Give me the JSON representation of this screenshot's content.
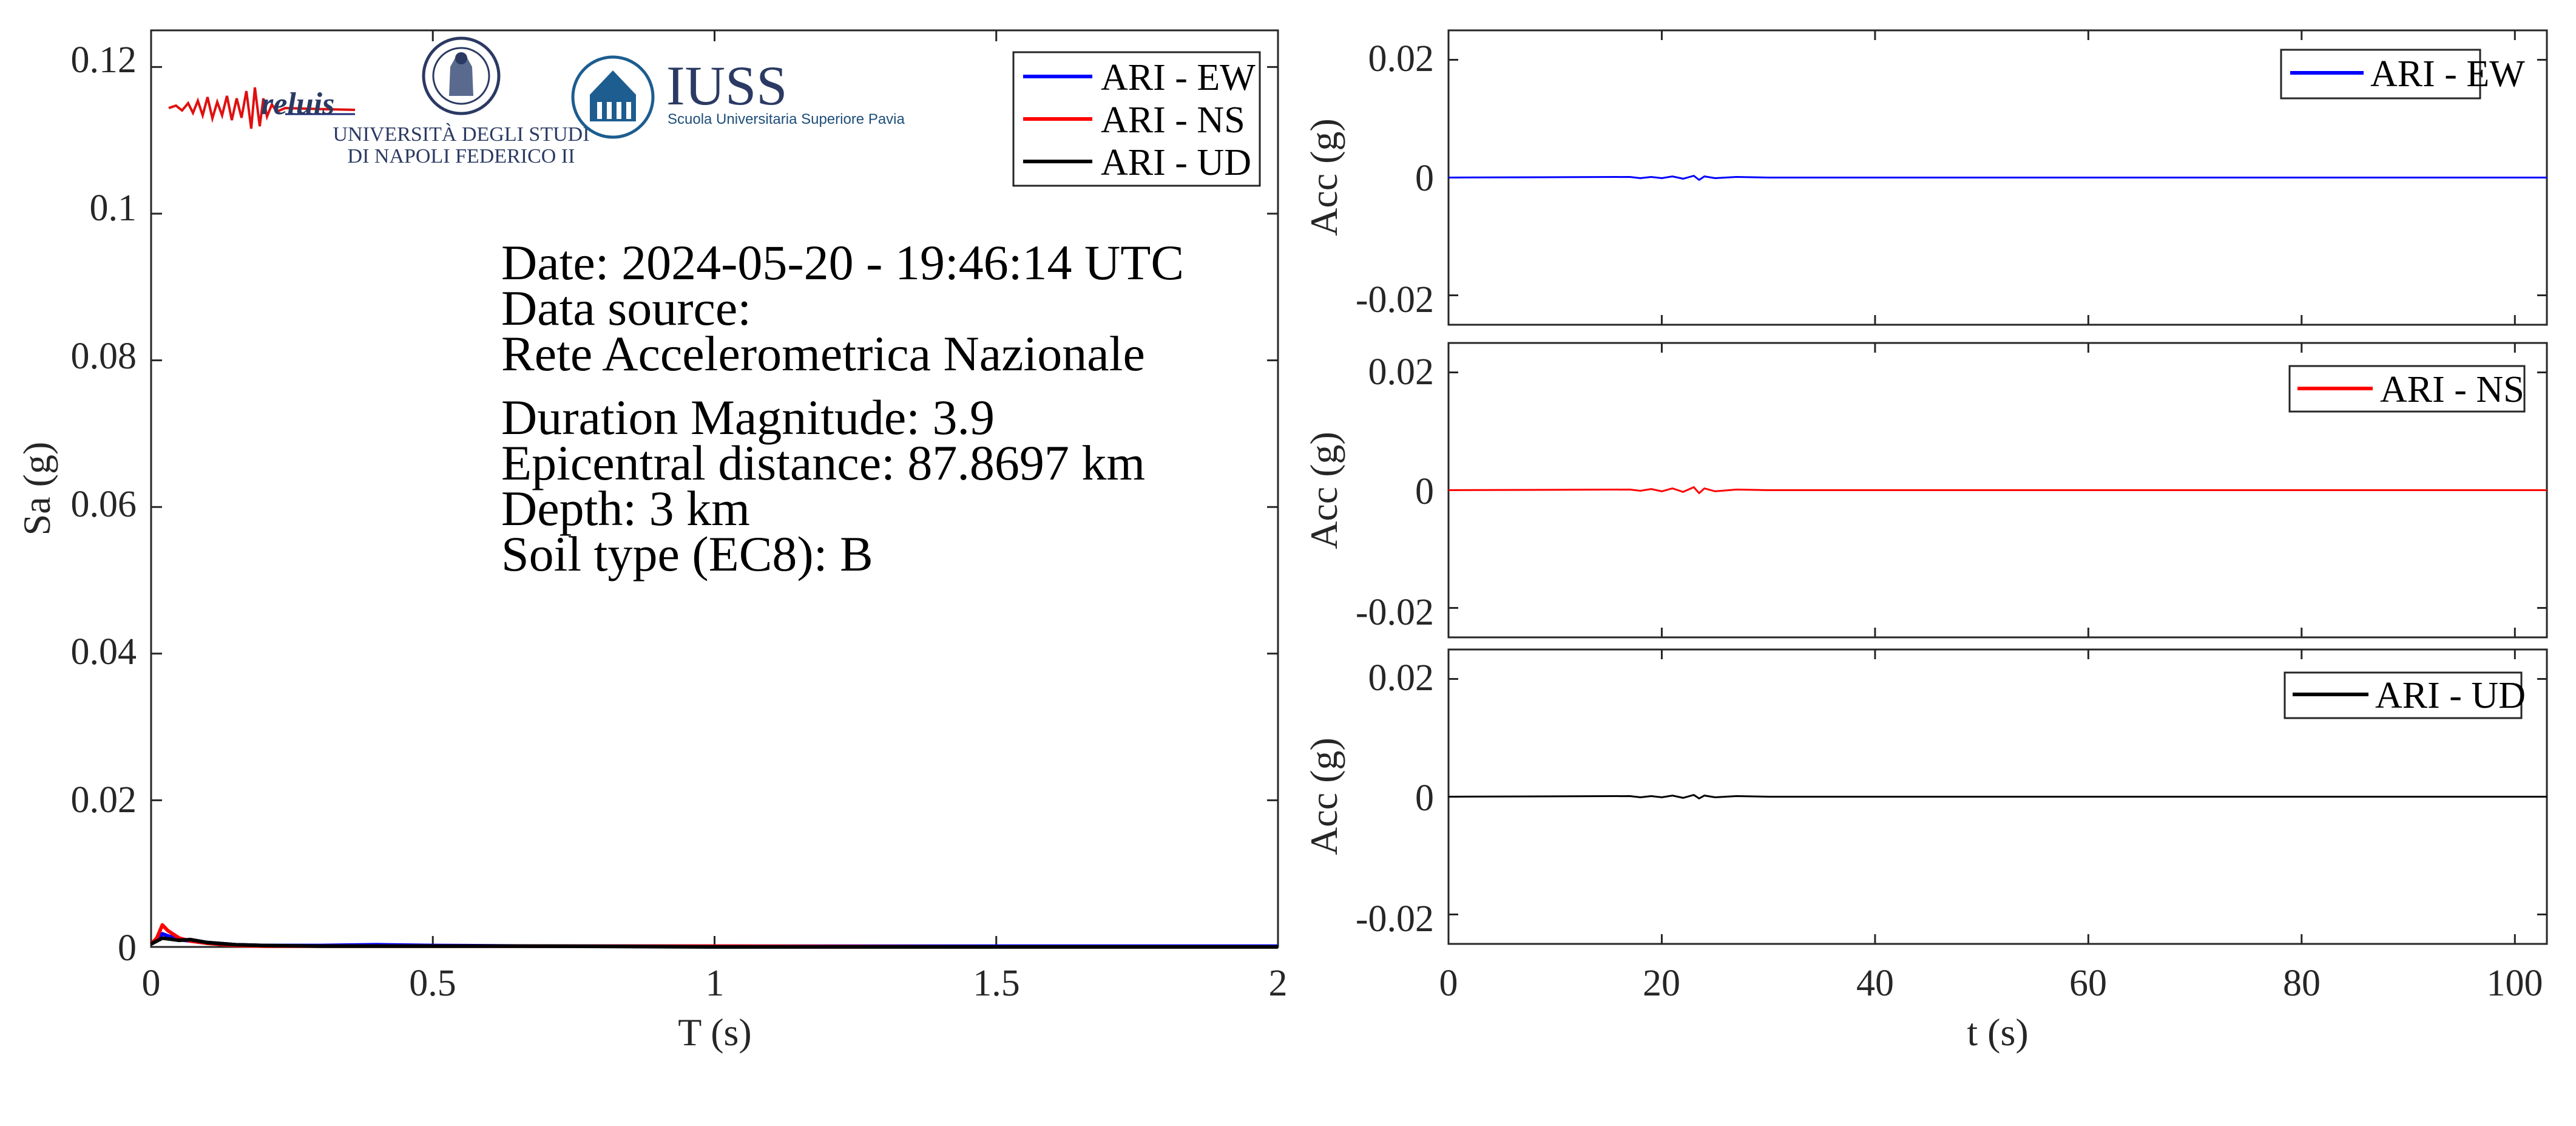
{
  "spectrum": {
    "ylabel": "Sa (g)",
    "xlabel": "T (s)",
    "xticks": [
      "0",
      "0.5",
      "1",
      "1.5",
      "2"
    ],
    "yticks": [
      "0",
      "0.02",
      "0.04",
      "0.06",
      "0.08",
      "0.1",
      "0.12"
    ],
    "legend": [
      "ARI - EW",
      "ARI - NS",
      "ARI - UD"
    ]
  },
  "info": {
    "line1": "Date: 2024-05-20 - 19:46:14 UTC",
    "line2": "Data source:",
    "line3": "Rete Accelerometrica Nazionale",
    "line4": "Duration Magnitude: 3.9",
    "line5": "Epicentral distance: 87.8697 km",
    "line6": "Depth: 3 km",
    "line7": "Soil type (EC8): B"
  },
  "logos": {
    "reluis": "reluis",
    "unina_1": "UNIVERSITÀ DEGLI STUDI",
    "unina_2": "DI NAPOLI FEDERICO II",
    "iuss_1": "IUSS",
    "iuss_2": "Scuola Universitaria Superiore Pavia"
  },
  "timeseries": {
    "ylabel": "Acc (g)",
    "xlabel": "t (s)",
    "xticks": [
      "0",
      "20",
      "40",
      "60",
      "80",
      "100"
    ],
    "yticks": [
      "0.02",
      "0",
      "-0.02"
    ]
  },
  "colors": {
    "EW": "#0000ff",
    "NS": "#ff0000",
    "UD": "#000000",
    "axes": "#262626"
  },
  "chart_data": [
    {
      "type": "line",
      "xlabel": "T (s)",
      "ylabel": "Sa (g)",
      "xlim": [
        0,
        2
      ],
      "ylim": [
        0,
        0.125
      ],
      "legend_position": "top-right",
      "series": [
        {
          "name": "ARI - EW",
          "color": "#0000ff",
          "x": [
            0,
            0.01,
            0.02,
            0.03,
            0.05,
            0.07,
            0.1,
            0.15,
            0.2,
            0.3,
            0.4,
            0.5,
            0.7,
            1.0,
            1.5,
            2.0
          ],
          "y": [
            0.0004,
            0.0009,
            0.0018,
            0.0015,
            0.001,
            0.0008,
            0.0006,
            0.0003,
            0.0002,
            0.0002,
            0.0003,
            0.0002,
            0.0001,
            0.0001,
            0.0001,
            0.0001
          ]
        },
        {
          "name": "ARI - NS",
          "color": "#ff0000",
          "x": [
            0,
            0.01,
            0.02,
            0.03,
            0.05,
            0.07,
            0.1,
            0.15,
            0.2,
            0.3,
            0.4,
            0.5,
            0.7,
            1.0,
            1.5,
            2.0
          ],
          "y": [
            0.0004,
            0.0012,
            0.003,
            0.0022,
            0.0012,
            0.0008,
            0.0005,
            0.0002,
            0.0001,
            0.0001,
            0.0001,
            0.0001,
            0.0001,
            0.0001,
            0.0,
            0.0
          ]
        },
        {
          "name": "ARI - UD",
          "color": "#000000",
          "x": [
            0,
            0.01,
            0.02,
            0.03,
            0.05,
            0.07,
            0.1,
            0.15,
            0.2,
            0.3,
            0.4,
            0.5,
            0.7,
            1.0,
            1.5,
            2.0
          ],
          "y": [
            0.0004,
            0.0008,
            0.0012,
            0.0011,
            0.0009,
            0.001,
            0.0006,
            0.0003,
            0.0002,
            0.0001,
            0.0001,
            0.0001,
            0.0001,
            0.0,
            0.0,
            0.0
          ]
        }
      ]
    },
    {
      "type": "line",
      "xlabel": "",
      "ylabel": "Acc (g)",
      "xlim": [
        0,
        103
      ],
      "ylim": [
        -0.025,
        0.025
      ],
      "legend_position": "top-right",
      "series": [
        {
          "name": "ARI - EW",
          "color": "#0000ff",
          "x": [
            0,
            17,
            18,
            19,
            20,
            21,
            22,
            23,
            23.5,
            24,
            25,
            27,
            30,
            103
          ],
          "y": [
            0,
            0.0001,
            -0.0001,
            0.0001,
            -0.0001,
            0.0002,
            -0.0002,
            0.0003,
            -0.0004,
            0.0002,
            -0.0001,
            0.0001,
            0,
            0
          ]
        }
      ]
    },
    {
      "type": "line",
      "xlabel": "",
      "ylabel": "Acc (g)",
      "xlim": [
        0,
        103
      ],
      "ylim": [
        -0.025,
        0.025
      ],
      "legend_position": "top-right",
      "series": [
        {
          "name": "ARI - NS",
          "color": "#ff0000",
          "x": [
            0,
            17,
            18,
            19,
            20,
            21,
            22,
            23,
            23.5,
            24,
            25,
            27,
            30,
            103
          ],
          "y": [
            0,
            0.0001,
            -0.0001,
            0.0002,
            -0.0002,
            0.0003,
            -0.0003,
            0.0005,
            -0.0005,
            0.0003,
            -0.0002,
            0.0001,
            0,
            0
          ]
        }
      ]
    },
    {
      "type": "line",
      "xlabel": "t (s)",
      "ylabel": "Acc (g)",
      "xlim": [
        0,
        103
      ],
      "ylim": [
        -0.025,
        0.025
      ],
      "legend_position": "top-right",
      "series": [
        {
          "name": "ARI - UD",
          "color": "#000000",
          "x": [
            0,
            17,
            18,
            19,
            20,
            21,
            22,
            23,
            23.5,
            24,
            25,
            27,
            30,
            103
          ],
          "y": [
            0,
            0.0001,
            -0.0001,
            0.0001,
            -0.0001,
            0.0002,
            -0.0002,
            0.0003,
            -0.0003,
            0.0002,
            -0.0001,
            0.0001,
            0,
            0
          ]
        }
      ]
    }
  ]
}
